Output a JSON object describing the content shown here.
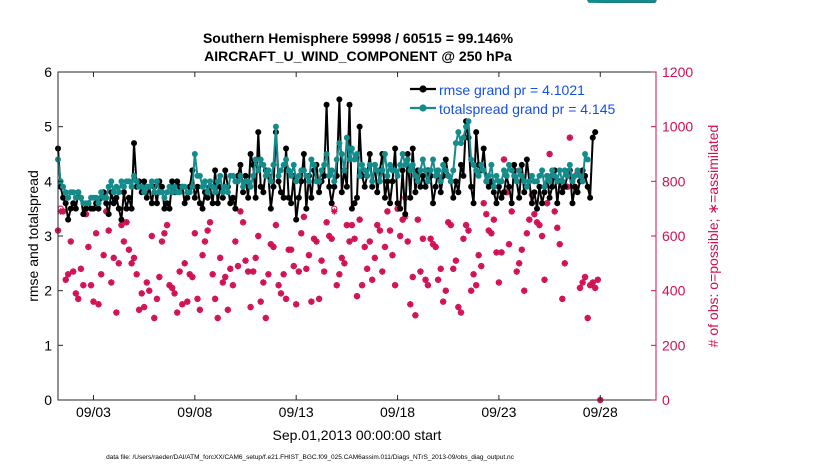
{
  "chart_data": {
    "type": "line",
    "title_line1": "Southern Hemisphere 59998 / 60515 = 99.146%",
    "title_line2": "AIRCRAFT_U_WIND_COMPONENT @ 250 hPa",
    "xlabel": "Sep.01,2013 00:00:00 start",
    "ylabel_left": "rmse and totalspread",
    "ylabel_right": "# of obs: o=possible; ∗=assimilated",
    "footer": "data file: /Users/raeder/DAI/ATM_forcXX/CAM6_setup/f.e21.FHIST_BGC.f09_025.CAM6assim.011/Diags_NTrS_2013-09/obs_diag_output.nc",
    "x_ticks": [
      "09/03",
      "09/08",
      "09/13",
      "09/18",
      "09/23",
      "09/28"
    ],
    "x_tick_days": [
      3,
      8,
      13,
      18,
      23,
      28
    ],
    "xlim": [
      1.25,
      30.75
    ],
    "ylim_left": [
      0,
      6
    ],
    "yticks_left": [
      "0",
      "1",
      "2",
      "3",
      "4",
      "5",
      "6"
    ],
    "ylim_right": [
      0,
      1200
    ],
    "yticks_right": [
      "0",
      "200",
      "400",
      "600",
      "800",
      "1000",
      "1200"
    ],
    "colors": {
      "rmse": "#000000",
      "spread": "#148c8c",
      "obs": "#d10f55",
      "legend_text": "#1450e6"
    },
    "legend": {
      "placement": "top-right",
      "rmse_label": "rmse grand pr = 4.1021",
      "spread_label": "totalspread grand pr = 4.145"
    },
    "x_days": [
      1.25,
      1.38,
      1.5,
      1.63,
      1.75,
      1.88,
      2.0,
      2.13,
      2.25,
      2.38,
      2.5,
      2.63,
      2.75,
      2.88,
      3.0,
      3.13,
      3.25,
      3.38,
      3.5,
      3.63,
      3.75,
      3.88,
      4.0,
      4.13,
      4.25,
      4.38,
      4.5,
      4.63,
      4.75,
      4.88,
      5.0,
      5.13,
      5.25,
      5.38,
      5.5,
      5.63,
      5.75,
      5.88,
      6.0,
      6.13,
      6.25,
      6.38,
      6.5,
      6.63,
      6.75,
      6.88,
      7.0,
      7.13,
      7.25,
      7.38,
      7.5,
      7.63,
      7.75,
      7.88,
      8.0,
      8.13,
      8.25,
      8.38,
      8.5,
      8.63,
      8.75,
      8.88,
      9.0,
      9.13,
      9.25,
      9.38,
      9.5,
      9.63,
      9.75,
      9.88,
      10.0,
      10.13,
      10.25,
      10.38,
      10.5,
      10.63,
      10.75,
      10.88,
      11.0,
      11.13,
      11.25,
      11.38,
      11.5,
      11.63,
      11.75,
      11.88,
      12.0,
      12.13,
      12.25,
      12.38,
      12.5,
      12.63,
      12.75,
      12.88,
      13.0,
      13.13,
      13.25,
      13.38,
      13.5,
      13.63,
      13.75,
      13.88,
      14.0,
      14.13,
      14.25,
      14.38,
      14.5,
      14.63,
      14.75,
      14.88,
      15.0,
      15.13,
      15.25,
      15.38,
      15.5,
      15.63,
      15.75,
      15.88,
      16.0,
      16.13,
      16.25,
      16.38,
      16.5,
      16.63,
      16.75,
      16.88,
      17.0,
      17.13,
      17.25,
      17.38,
      17.5,
      17.63,
      17.75,
      17.88,
      18.0,
      18.13,
      18.25,
      18.38,
      18.5,
      18.63,
      18.75,
      18.88,
      19.0,
      19.13,
      19.25,
      19.38,
      19.5,
      19.63,
      19.75,
      19.88,
      20.0,
      20.13,
      20.25,
      20.38,
      20.5,
      20.63,
      20.75,
      20.88,
      21.0,
      21.13,
      21.25,
      21.38,
      21.5,
      21.63,
      21.75,
      21.88,
      22.0,
      22.13,
      22.25,
      22.38,
      22.5,
      22.63,
      22.75,
      22.88,
      23.0,
      23.13,
      23.25,
      23.38,
      23.5,
      23.63,
      23.75,
      23.88,
      24.0,
      24.13,
      24.25,
      24.38,
      24.5,
      24.63,
      24.75,
      24.88,
      25.0,
      25.13,
      25.25,
      25.38,
      25.5,
      25.63,
      25.75,
      25.88,
      26.0,
      26.13,
      26.25,
      26.38,
      26.5,
      26.63,
      26.75,
      26.88,
      27.0,
      27.13,
      27.25,
      27.38,
      27.5,
      27.63,
      27.75,
      27.88,
      28.0,
      28.13,
      28.25,
      28.38,
      28.5,
      28.63,
      28.75,
      28.88,
      29.0,
      29.13,
      29.25,
      29.38,
      29.5,
      29.63,
      29.75,
      29.88,
      30.0,
      30.13,
      30.25,
      30.38,
      30.5,
      30.63
    ],
    "rmse": [
      4.6,
      3.9,
      3.7,
      3.6,
      3.3,
      3.5,
      3.6,
      3.5,
      3.8,
      3.7,
      3.4,
      3.5,
      3.6,
      3.5,
      3.5,
      3.6,
      3.5,
      3.7,
      3.8,
      3.6,
      3.4,
      3.8,
      3.6,
      3.7,
      3.5,
      3.3,
      3.8,
      3.5,
      3.7,
      3.5,
      4.7,
      3.9,
      4.0,
      3.8,
      4.0,
      3.7,
      3.9,
      3.6,
      3.9,
      3.6,
      4.0,
      3.9,
      3.5,
      3.6,
      3.5,
      4.0,
      3.8,
      4.0,
      3.9,
      3.9,
      3.6,
      3.7,
      3.9,
      4.2,
      3.7,
      3.9,
      3.6,
      3.5,
      3.8,
      3.7,
      3.9,
      3.6,
      4.2,
      3.6,
      3.9,
      3.7,
      4.2,
      3.9,
      3.6,
      3.7,
      3.5,
      4.1,
      4.3,
      3.8,
      4.1,
      3.7,
      4.5,
      4.3,
      3.7,
      4.9,
      3.9,
      3.8,
      4.2,
      4.1,
      3.5,
      3.9,
      4.9,
      4.0,
      3.8,
      3.7,
      4.6,
      3.7,
      3.6,
      4.1,
      3.3,
      3.7,
      4.0,
      4.5,
      3.5,
      4.1,
      3.7,
      4.2,
      4.3,
      3.8,
      4.0,
      4.1,
      5.4,
      3.9,
      3.6,
      3.9,
      4.1,
      5.5,
      3.8,
      4.2,
      3.9,
      5.4,
      3.5,
      3.6,
      3.7,
      5.0,
      4.1,
      3.9,
      4.1,
      4.5,
      3.9,
      4.3,
      3.8,
      4.2,
      4.5,
      3.7,
      4.0,
      3.6,
      4.0,
      4.6,
      3.6,
      3.5,
      4.2,
      3.4,
      4.5,
      3.7,
      4.6,
      3.8,
      4.2,
      3.9,
      4.1,
      3.9,
      4.2,
      4.1,
      3.6,
      3.9,
      4.2,
      3.8,
      4.1,
      4.4,
      4.1,
      4.0,
      3.7,
      4.0,
      3.8,
      4.3,
      4.1,
      5.1,
      4.8,
      3.9,
      3.6,
      4.9,
      4.3,
      4.2,
      4.6,
      4.0,
      3.9,
      4.0,
      3.8,
      3.6,
      3.9,
      3.7,
      3.8,
      4.1,
      3.9,
      3.6,
      4.3,
      4.0,
      3.7,
      4.3,
      3.8,
      4.4,
      4.0,
      3.6,
      3.8,
      3.5,
      3.9,
      3.6,
      3.8,
      4.1,
      3.7,
      3.9,
      4.2,
      3.6,
      4.0,
      3.8,
      3.9,
      4.1,
      4.2,
      3.6,
      3.9,
      3.8,
      4.0,
      4.2,
      4.1,
      3.9,
      3.7,
      4.8,
      4.9
    ],
    "totalspread": [
      4.4,
      4.0,
      3.9,
      3.8,
      3.7,
      3.8,
      3.8,
      3.7,
      3.8,
      3.7,
      3.6,
      3.6,
      3.6,
      3.7,
      3.7,
      3.7,
      3.6,
      3.8,
      3.7,
      3.7,
      3.9,
      4.0,
      3.8,
      3.9,
      3.8,
      4.0,
      3.9,
      4.0,
      4.0,
      3.9,
      4.1,
      4.0,
      3.9,
      3.9,
      3.8,
      3.9,
      3.9,
      4.0,
      3.8,
      4.0,
      3.8,
      3.8,
      3.7,
      3.8,
      3.9,
      3.8,
      3.9,
      3.8,
      3.8,
      3.9,
      3.9,
      3.8,
      3.8,
      3.9,
      4.5,
      4.1,
      4.1,
      3.9,
      4.0,
      3.8,
      4.0,
      3.9,
      3.8,
      4.0,
      4.1,
      3.8,
      3.9,
      3.8,
      4.1,
      4.1,
      4.0,
      4.0,
      4.1,
      3.9,
      4.0,
      4.0,
      3.9,
      4.1,
      4.4,
      4.2,
      4.4,
      4.3,
      4.1,
      4.2,
      4.0,
      4.3,
      5.0,
      4.1,
      4.2,
      4.3,
      4.4,
      4.2,
      4.1,
      4.3,
      4.0,
      4.1,
      4.2,
      4.2,
      4.1,
      4.0,
      4.4,
      4.3,
      4.0,
      4.0,
      4.2,
      4.3,
      4.5,
      4.1,
      4.2,
      4.0,
      4.4,
      4.7,
      4.5,
      4.2,
      4.8,
      4.4,
      4.6,
      4.4,
      4.5,
      4.1,
      4.3,
      4.2,
      4.1,
      4.3,
      4.0,
      4.3,
      4.2,
      4.0,
      4.2,
      4.5,
      4.1,
      4.3,
      4.2,
      4.2,
      4.1,
      4.3,
      4.5,
      4.3,
      4.4,
      4.2,
      4.3,
      4.1,
      4.0,
      4.2,
      4.4,
      4.2,
      4.0,
      4.2,
      4.4,
      4.1,
      4.2,
      4.0,
      4.3,
      4.2,
      4.1,
      4.0,
      4.2,
      4.7,
      4.9,
      4.7,
      4.8,
      5.0,
      5.1,
      4.4,
      4.3,
      4.2,
      4.1,
      4.3,
      4.2,
      4.0,
      4.1,
      4.3,
      3.9,
      4.1,
      4.0,
      4.0,
      4.2,
      4.1,
      4.3,
      4.2,
      4.1,
      4.0,
      4.2,
      4.1,
      4.0,
      3.9,
      4.0,
      4.1,
      4.0,
      4.0,
      4.1,
      4.2,
      3.9,
      4.1,
      4.0,
      4.2,
      4.1,
      4.0,
      4.2,
      4.0,
      4.2,
      4.1,
      4.3,
      4.0,
      4.1,
      4.2,
      4.1,
      4.0,
      4.5,
      4.4
    ],
    "obs_possible": [
      620,
      700,
      690,
      440,
      460,
      580,
      470,
      390,
      370,
      480,
      420,
      680,
      560,
      420,
      360,
      610,
      350,
      460,
      530,
      690,
      620,
      430,
      520,
      320,
      500,
      640,
      580,
      650,
      550,
      500,
      520,
      460,
      330,
      390,
      340,
      430,
      400,
      600,
      300,
      370,
      450,
      580,
      610,
      640,
      420,
      410,
      390,
      320,
      470,
      350,
      500,
      360,
      460,
      450,
      610,
      370,
      330,
      530,
      580,
      620,
      650,
      460,
      370,
      300,
      520,
      430,
      450,
      330,
      480,
      420,
      580,
      490,
      690,
      650,
      510,
      470,
      340,
      470,
      520,
      600,
      360,
      430,
      300,
      460,
      570,
      560,
      640,
      420,
      390,
      460,
      370,
      550,
      550,
      490,
      350,
      470,
      610,
      670,
      480,
      530,
      360,
      590,
      580,
      370,
      510,
      470,
      650,
      600,
      590,
      700,
      420,
      460,
      520,
      500,
      640,
      580,
      640,
      590,
      380,
      660,
      420,
      560,
      480,
      580,
      440,
      520,
      640,
      620,
      470,
      560,
      690,
      620,
      530,
      420,
      700,
      600,
      660,
      740,
      580,
      350,
      450,
      310,
      660,
      470,
      590,
      440,
      420,
      590,
      570,
      560,
      440,
      480,
      360,
      400,
      650,
      640,
      480,
      510,
      340,
      320,
      590,
      640,
      620,
      400,
      460,
      420,
      530,
      490,
      720,
      680,
      620,
      610,
      660,
      540,
      430,
      540,
      880,
      760,
      570,
      690,
      840,
      470,
      500,
      550,
      400,
      610,
      660,
      750,
      680,
      650,
      640,
      600,
      440,
      720,
      900,
      820,
      690,
      630,
      570,
      370,
      500,
      780,
      960,
      810,
      780,
      830,
      410,
      430,
      450,
      300,
      420,
      430,
      410,
      440,
      0
    ],
    "obs_assimilated": [
      620,
      690,
      690,
      440,
      460,
      580,
      470,
      390,
      370,
      480,
      420,
      680,
      560,
      420,
      360,
      610,
      350,
      460,
      530,
      690,
      620,
      430,
      520,
      320,
      500,
      640,
      580,
      650,
      550,
      500,
      520,
      460,
      330,
      390,
      340,
      430,
      400,
      600,
      300,
      370,
      450,
      580,
      610,
      640,
      420,
      410,
      390,
      320,
      470,
      350,
      500,
      360,
      460,
      450,
      610,
      370,
      330,
      530,
      580,
      620,
      650,
      460,
      370,
      300,
      520,
      430,
      450,
      330,
      480,
      420,
      580,
      490,
      690,
      650,
      510,
      470,
      340,
      470,
      520,
      600,
      360,
      430,
      300,
      460,
      570,
      560,
      640,
      420,
      390,
      460,
      370,
      550,
      550,
      490,
      350,
      470,
      610,
      670,
      480,
      530,
      360,
      590,
      580,
      370,
      510,
      470,
      650,
      600,
      590,
      690,
      420,
      460,
      520,
      500,
      640,
      580,
      640,
      590,
      380,
      660,
      420,
      560,
      480,
      580,
      440,
      520,
      640,
      620,
      470,
      560,
      690,
      620,
      530,
      420,
      700,
      600,
      660,
      670,
      580,
      350,
      450,
      310,
      660,
      470,
      590,
      440,
      420,
      590,
      570,
      560,
      440,
      480,
      360,
      400,
      650,
      640,
      480,
      510,
      340,
      320,
      590,
      640,
      620,
      400,
      460,
      420,
      530,
      490,
      720,
      680,
      620,
      610,
      660,
      540,
      430,
      540,
      880,
      760,
      570,
      690,
      840,
      470,
      500,
      550,
      400,
      610,
      660,
      750,
      680,
      650,
      640,
      600,
      440,
      720,
      900,
      820,
      690,
      630,
      570,
      370,
      500,
      780,
      960,
      810,
      780,
      830,
      410,
      430,
      450,
      300,
      420,
      430,
      410,
      440,
      0
    ]
  }
}
